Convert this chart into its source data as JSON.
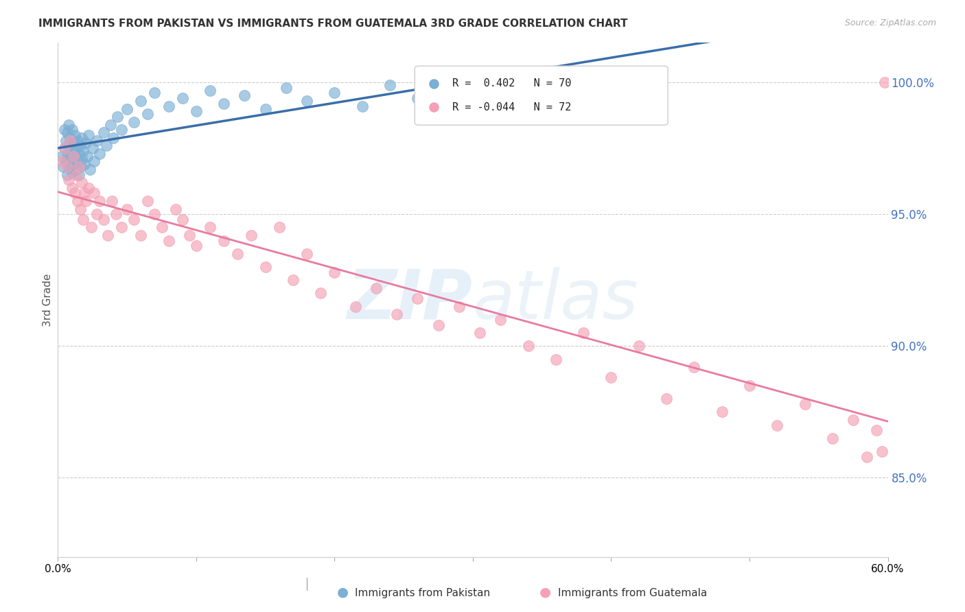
{
  "title": "IMMIGRANTS FROM PAKISTAN VS IMMIGRANTS FROM GUATEMALA 3RD GRADE CORRELATION CHART",
  "source": "Source: ZipAtlas.com",
  "ylabel": "3rd Grade",
  "ytick_labels": [
    "100.0%",
    "95.0%",
    "90.0%",
    "85.0%"
  ],
  "ytick_values": [
    1.0,
    0.95,
    0.9,
    0.85
  ],
  "xlim": [
    0.0,
    0.6
  ],
  "ylim": [
    0.82,
    1.015
  ],
  "legend_R_pakistan": "0.402",
  "legend_N_pakistan": "70",
  "legend_R_guatemala": "-0.044",
  "legend_N_guatemala": "72",
  "pakistan_color": "#7bafd4",
  "guatemala_color": "#f4a0b5",
  "pakistan_line_color": "#3a6ea8",
  "guatemala_line_color": "#e87a9f",
  "watermark_zip": "ZIP",
  "watermark_atlas": "atlas",
  "watermark_color_zip": "#c8dff0",
  "watermark_color_atlas": "#c8dff0",
  "n_pakistan": 70,
  "n_guatemala": 72,
  "pak_x": [
    0.003,
    0.004,
    0.005,
    0.005,
    0.006,
    0.006,
    0.007,
    0.007,
    0.007,
    0.008,
    0.008,
    0.008,
    0.009,
    0.009,
    0.01,
    0.01,
    0.01,
    0.011,
    0.011,
    0.012,
    0.012,
    0.013,
    0.013,
    0.014,
    0.014,
    0.015,
    0.015,
    0.016,
    0.016,
    0.017,
    0.017,
    0.018,
    0.019,
    0.02,
    0.021,
    0.022,
    0.023,
    0.025,
    0.026,
    0.028,
    0.03,
    0.033,
    0.035,
    0.038,
    0.04,
    0.043,
    0.046,
    0.05,
    0.055,
    0.06,
    0.065,
    0.07,
    0.08,
    0.09,
    0.1,
    0.11,
    0.12,
    0.135,
    0.15,
    0.165,
    0.18,
    0.2,
    0.22,
    0.24,
    0.26,
    0.28,
    0.3,
    0.32,
    0.34,
    0.36
  ],
  "pak_y": [
    0.972,
    0.968,
    0.975,
    0.982,
    0.97,
    0.978,
    0.965,
    0.973,
    0.981,
    0.968,
    0.976,
    0.984,
    0.971,
    0.979,
    0.966,
    0.974,
    0.982,
    0.969,
    0.977,
    0.972,
    0.98,
    0.967,
    0.975,
    0.97,
    0.978,
    0.965,
    0.973,
    0.968,
    0.976,
    0.971,
    0.979,
    0.974,
    0.969,
    0.977,
    0.972,
    0.98,
    0.967,
    0.975,
    0.97,
    0.978,
    0.973,
    0.981,
    0.976,
    0.984,
    0.979,
    0.987,
    0.982,
    0.99,
    0.985,
    0.993,
    0.988,
    0.996,
    0.991,
    0.994,
    0.989,
    0.997,
    0.992,
    0.995,
    0.99,
    0.998,
    0.993,
    0.996,
    0.991,
    0.999,
    0.994,
    0.997,
    0.992,
    1.0,
    0.995,
    0.998
  ],
  "guat_x": [
    0.003,
    0.005,
    0.007,
    0.008,
    0.009,
    0.01,
    0.011,
    0.012,
    0.013,
    0.014,
    0.015,
    0.016,
    0.017,
    0.018,
    0.019,
    0.02,
    0.022,
    0.024,
    0.026,
    0.028,
    0.03,
    0.033,
    0.036,
    0.039,
    0.042,
    0.046,
    0.05,
    0.055,
    0.06,
    0.065,
    0.07,
    0.075,
    0.08,
    0.085,
    0.09,
    0.095,
    0.1,
    0.11,
    0.12,
    0.13,
    0.14,
    0.15,
    0.16,
    0.17,
    0.18,
    0.19,
    0.2,
    0.215,
    0.23,
    0.245,
    0.26,
    0.275,
    0.29,
    0.305,
    0.32,
    0.34,
    0.36,
    0.38,
    0.4,
    0.42,
    0.44,
    0.46,
    0.48,
    0.5,
    0.52,
    0.54,
    0.56,
    0.575,
    0.585,
    0.592,
    0.596,
    0.598
  ],
  "guat_y": [
    0.97,
    0.975,
    0.968,
    0.963,
    0.978,
    0.96,
    0.972,
    0.958,
    0.965,
    0.955,
    0.968,
    0.952,
    0.962,
    0.948,
    0.958,
    0.955,
    0.96,
    0.945,
    0.958,
    0.95,
    0.955,
    0.948,
    0.942,
    0.955,
    0.95,
    0.945,
    0.952,
    0.948,
    0.942,
    0.955,
    0.95,
    0.945,
    0.94,
    0.952,
    0.948,
    0.942,
    0.938,
    0.945,
    0.94,
    0.935,
    0.942,
    0.93,
    0.945,
    0.925,
    0.935,
    0.92,
    0.928,
    0.915,
    0.922,
    0.912,
    0.918,
    0.908,
    0.915,
    0.905,
    0.91,
    0.9,
    0.895,
    0.905,
    0.888,
    0.9,
    0.88,
    0.892,
    0.875,
    0.885,
    0.87,
    0.878,
    0.865,
    0.872,
    0.858,
    0.868,
    0.86,
    1.0
  ]
}
